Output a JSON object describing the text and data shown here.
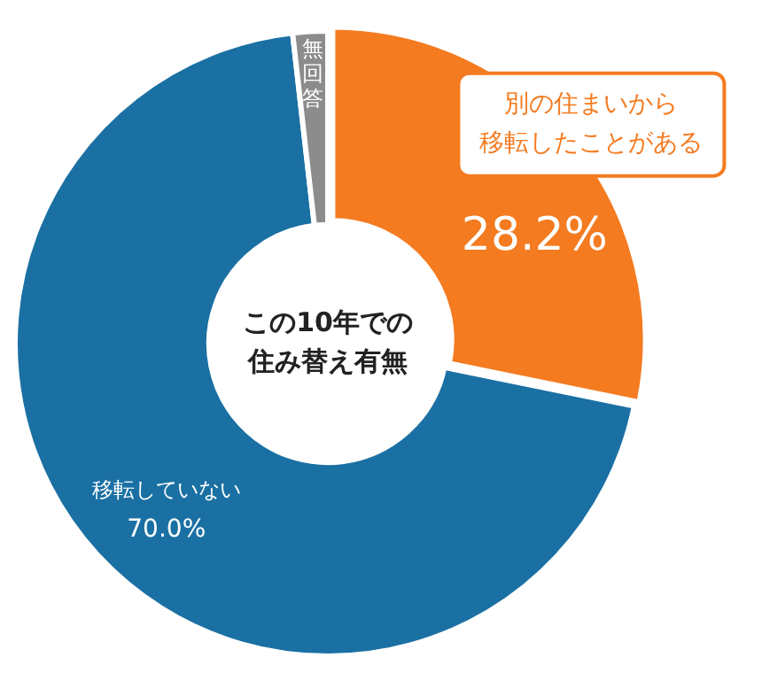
{
  "chart_data": {
    "type": "donut",
    "title": "この10年での住み替え有無",
    "categories": [
      "別の住まいから移転したことがある",
      "移転していない",
      "無回答"
    ],
    "values": [
      28.2,
      70.0,
      1.8
    ],
    "colors": [
      "#f47b20",
      "#1a70a3",
      "#8c8c8c"
    ],
    "value_labels": [
      "28.2%",
      "70.0%",
      null
    ]
  }
}
